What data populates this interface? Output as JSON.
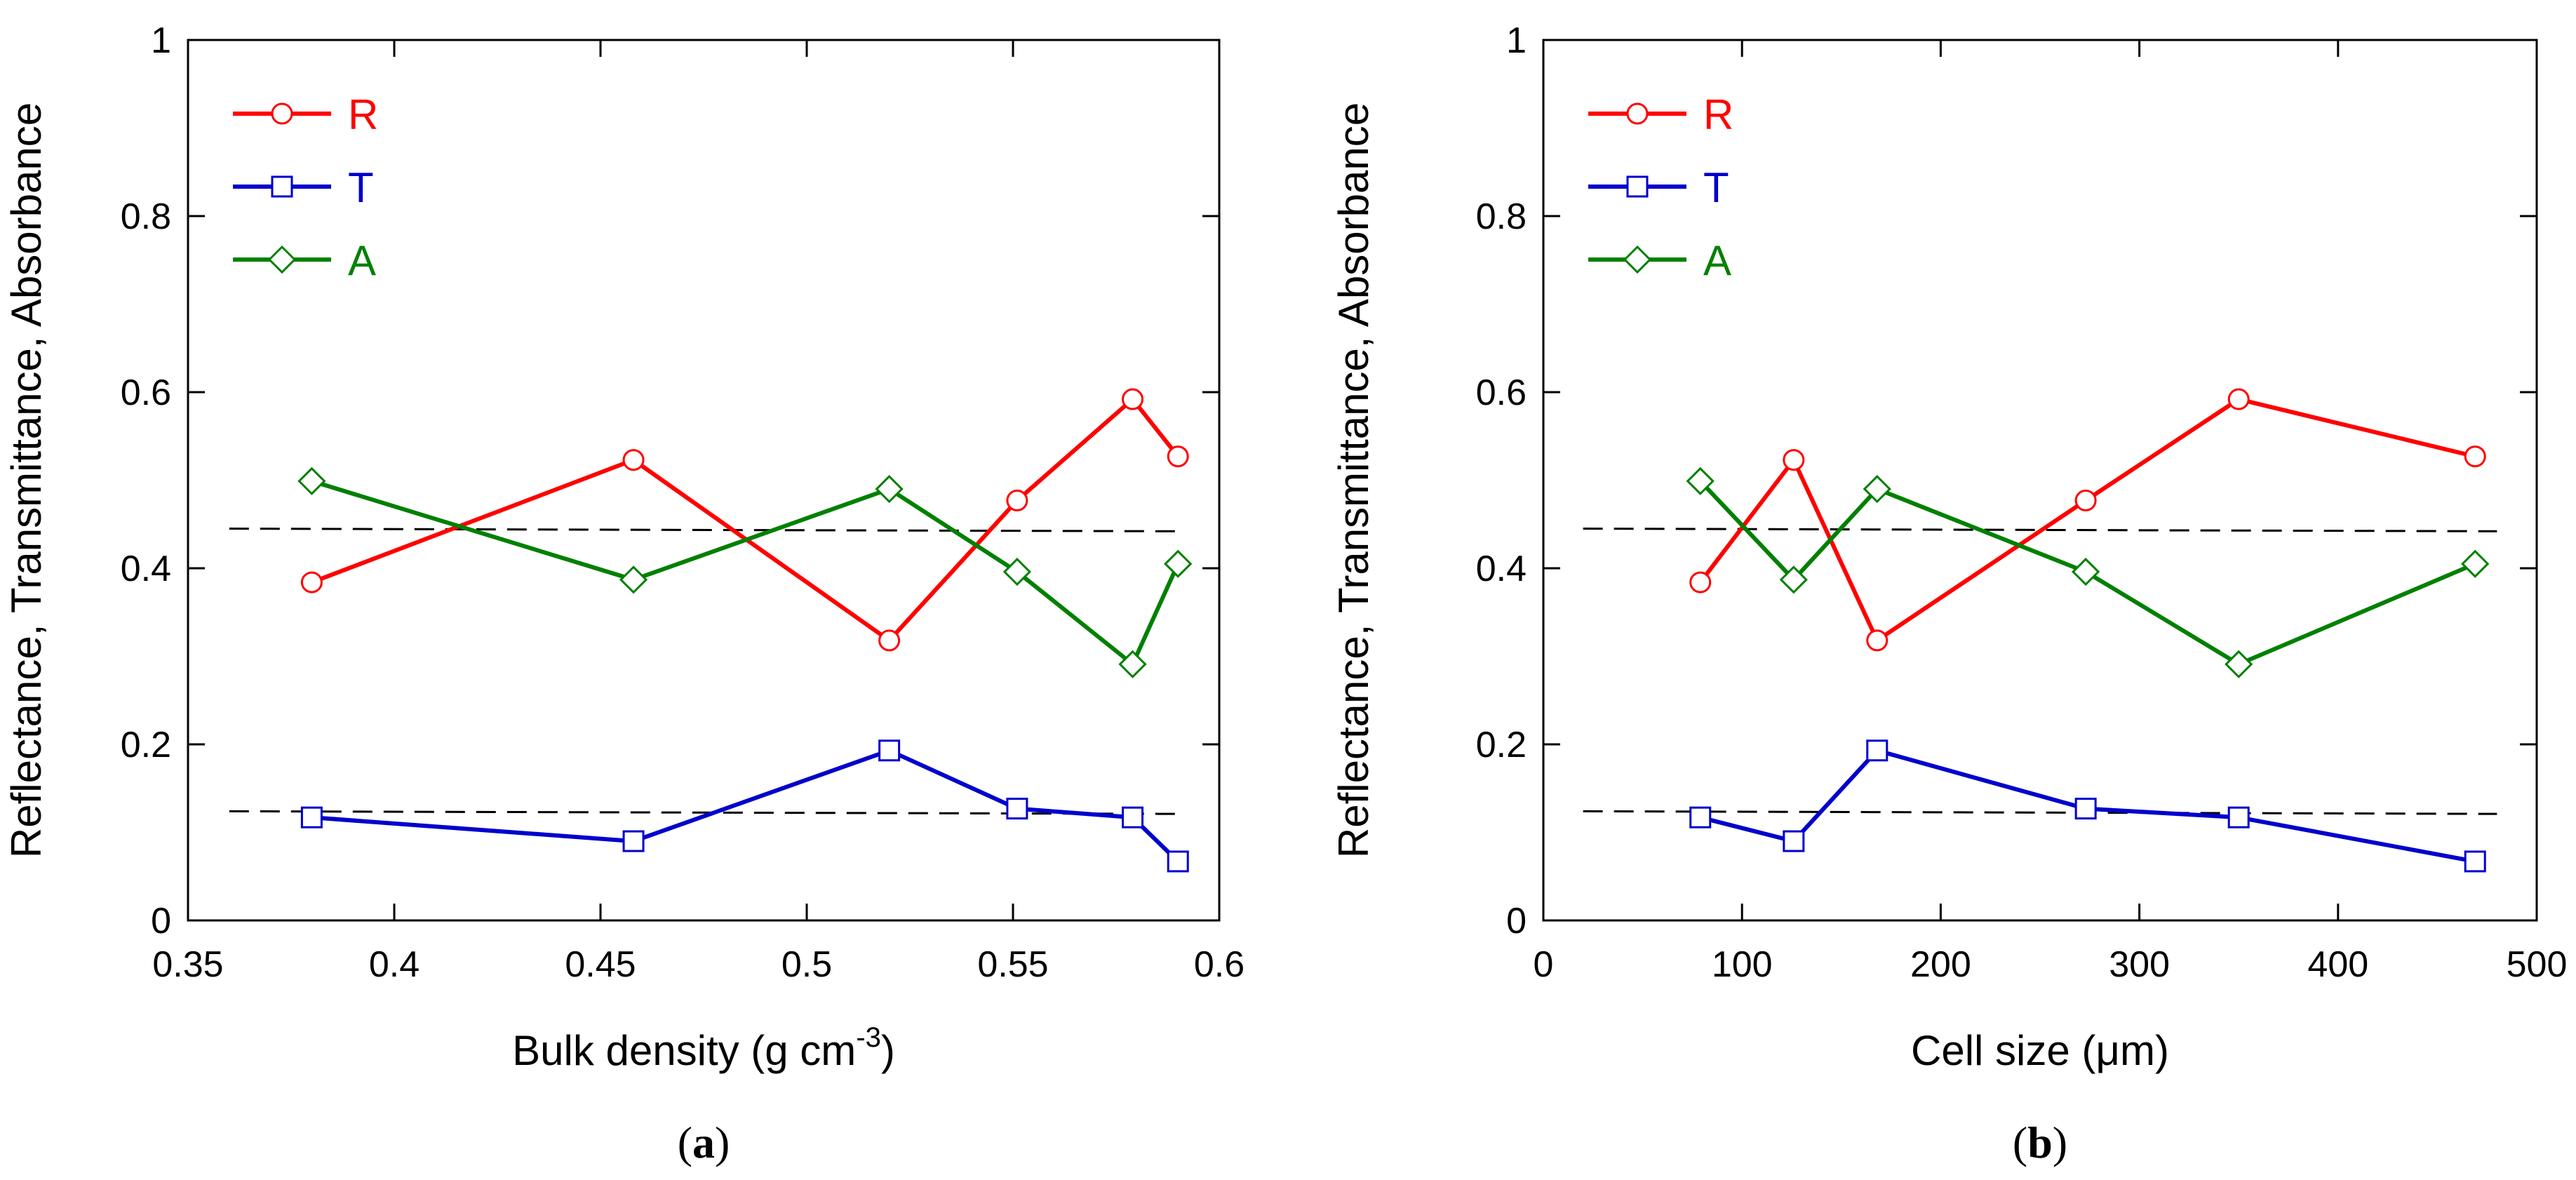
{
  "chart_data": [
    {
      "type": "line",
      "panel_label_open": "(",
      "panel_label_letter": "a",
      "panel_label_close": ")",
      "xlabel": "Bulk density (g cm",
      "xlabel_sup": "-3",
      "xlabel_end": ")",
      "ylabel": "Reflectance, Transmittance, Absorbance",
      "xlim": [
        0.35,
        0.6
      ],
      "ylim": [
        0,
        1
      ],
      "xticks": [
        0.35,
        0.4,
        0.45,
        0.5,
        0.55,
        0.6
      ],
      "xtick_labels": [
        "0.35",
        "0.4",
        "0.45",
        "0.5",
        "0.55",
        "0.6"
      ],
      "yticks": [
        0,
        0.2,
        0.4,
        0.6,
        0.8,
        1
      ],
      "ytick_labels": [
        "0",
        "0.2",
        "0.4",
        "0.6",
        "0.8",
        "1"
      ],
      "legend_position": "top-left",
      "series": [
        {
          "name": "R",
          "color": "#ff0000",
          "marker": "circle",
          "x": [
            0.38,
            0.458,
            0.52,
            0.551,
            0.579,
            0.59
          ],
          "y": [
            0.384,
            0.523,
            0.318,
            0.477,
            0.592,
            0.527
          ]
        },
        {
          "name": "T",
          "color": "#0000cc",
          "marker": "square",
          "x": [
            0.38,
            0.458,
            0.52,
            0.551,
            0.579,
            0.59
          ],
          "y": [
            0.117,
            0.09,
            0.193,
            0.127,
            0.117,
            0.067
          ]
        },
        {
          "name": "A",
          "color": "#008000",
          "marker": "diamond",
          "x": [
            0.38,
            0.458,
            0.52,
            0.551,
            0.579,
            0.59
          ],
          "y": [
            0.499,
            0.387,
            0.49,
            0.396,
            0.291,
            0.405
          ]
        }
      ],
      "reference_lines": [
        {
          "x": [
            0.36,
            0.59
          ],
          "y": [
            0.445,
            0.442
          ],
          "style": "dashed",
          "color": "#000000"
        },
        {
          "x": [
            0.36,
            0.59
          ],
          "y": [
            0.124,
            0.121
          ],
          "style": "dashed",
          "color": "#000000"
        }
      ]
    },
    {
      "type": "line",
      "panel_label_open": "(",
      "panel_label_letter": "b",
      "panel_label_close": ")",
      "xlabel": "Cell size (μm)",
      "xlabel_sup": "",
      "xlabel_end": "",
      "ylabel": "Reflectance, Transmittance, Absorbance",
      "xlim": [
        0,
        500
      ],
      "ylim": [
        0,
        1
      ],
      "xticks": [
        0,
        100,
        200,
        300,
        400,
        500
      ],
      "xtick_labels": [
        "0",
        "100",
        "200",
        "300",
        "400",
        "500"
      ],
      "yticks": [
        0,
        0.2,
        0.4,
        0.6,
        0.8,
        1
      ],
      "ytick_labels": [
        "0",
        "0.2",
        "0.4",
        "0.6",
        "0.8",
        "1"
      ],
      "legend_position": "top-left",
      "series": [
        {
          "name": "R",
          "color": "#ff0000",
          "marker": "circle",
          "x": [
            79,
            126,
            168,
            273,
            350,
            469
          ],
          "y": [
            0.384,
            0.523,
            0.318,
            0.477,
            0.592,
            0.527
          ]
        },
        {
          "name": "T",
          "color": "#0000cc",
          "marker": "square",
          "x": [
            79,
            126,
            168,
            273,
            350,
            469
          ],
          "y": [
            0.117,
            0.09,
            0.193,
            0.127,
            0.117,
            0.067
          ]
        },
        {
          "name": "A",
          "color": "#008000",
          "marker": "diamond",
          "x": [
            79,
            126,
            168,
            273,
            350,
            469
          ],
          "y": [
            0.499,
            0.387,
            0.49,
            0.396,
            0.291,
            0.405
          ]
        }
      ],
      "reference_lines": [
        {
          "x": [
            20,
            480
          ],
          "y": [
            0.445,
            0.442
          ],
          "style": "dashed",
          "color": "#000000"
        },
        {
          "x": [
            20,
            480
          ],
          "y": [
            0.124,
            0.121
          ],
          "style": "dashed",
          "color": "#000000"
        }
      ]
    }
  ]
}
